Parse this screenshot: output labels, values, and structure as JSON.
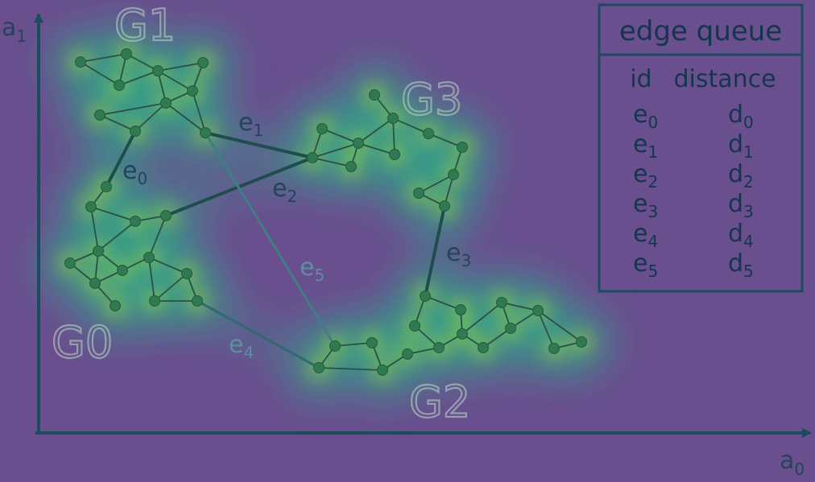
{
  "axes": {
    "x_label": "a",
    "x_sub": "0",
    "y_label": "a",
    "y_sub": "1"
  },
  "clusters": [
    {
      "key": "g0",
      "label": "G0"
    },
    {
      "key": "g1",
      "label": "G1"
    },
    {
      "key": "g2",
      "label": "G2"
    },
    {
      "key": "g3",
      "label": "G3"
    }
  ],
  "edges": [
    {
      "key": "e0",
      "label": "e",
      "sub": "0"
    },
    {
      "key": "e1",
      "label": "e",
      "sub": "1"
    },
    {
      "key": "e2",
      "label": "e",
      "sub": "2"
    },
    {
      "key": "e3",
      "label": "e",
      "sub": "3"
    },
    {
      "key": "e4",
      "label": "e",
      "sub": "4"
    },
    {
      "key": "e5",
      "label": "e",
      "sub": "5"
    }
  ],
  "queue": {
    "title": "edge queue",
    "col_id": "id",
    "col_distance": "distance",
    "rows": [
      {
        "id": "e",
        "id_sub": "0",
        "dist": "d",
        "dist_sub": "0"
      },
      {
        "id": "e",
        "id_sub": "1",
        "dist": "d",
        "dist_sub": "1"
      },
      {
        "id": "e",
        "id_sub": "2",
        "dist": "d",
        "dist_sub": "2"
      },
      {
        "id": "e",
        "id_sub": "3",
        "dist": "d",
        "dist_sub": "3"
      },
      {
        "id": "e",
        "id_sub": "4",
        "dist": "d",
        "dist_sub": "4"
      },
      {
        "id": "e",
        "id_sub": "5",
        "dist": "d",
        "dist_sub": "5"
      }
    ]
  },
  "colors": {
    "background": "#6a4f8f",
    "halo": "#2fa88a",
    "core": "#b5de2b",
    "node": "#2f7a52",
    "text": "#14364c"
  }
}
